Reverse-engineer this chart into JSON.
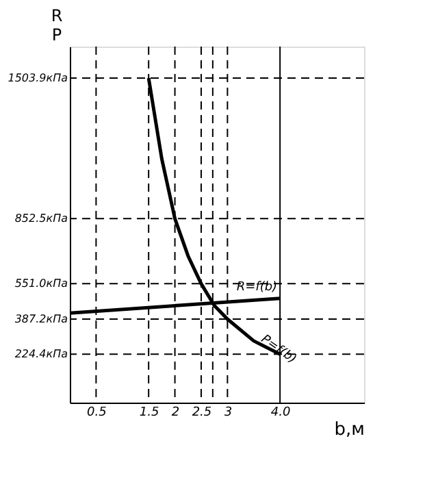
{
  "chart_data": {
    "type": "line",
    "xlabel": "b,м",
    "ylabel": "R\nP",
    "xlim": [
      0,
      5.6
    ],
    "ylim": [
      0,
      1650
    ],
    "xticks": [
      0.5,
      1.5,
      2,
      2.5,
      3,
      {
        "value": 4,
        "label": "4.0"
      }
    ],
    "yticks": [
      {
        "value": 224.4,
        "label": "224.4кПа"
      },
      {
        "value": 387.2,
        "label": "387.2кПа"
      },
      {
        "value": 551.0,
        "label": "551.0кПа"
      },
      {
        "value": 852.5,
        "label": "852.5кПа"
      },
      {
        "value": 1503.9,
        "label": "1503.9кПа"
      }
    ],
    "series": [
      {
        "name": "R=f(b)",
        "color": "#000000",
        "x": [
          0,
          4
        ],
        "values": [
          415,
          483
        ]
      },
      {
        "name": "P=f(b)",
        "color": "#000000",
        "x": [
          1.5,
          1.75,
          2,
          2.25,
          2.5,
          2.75,
          3,
          3.5,
          4
        ],
        "values": [
          1503.9,
          1130,
          852.5,
          680,
          551,
          450,
          387.2,
          286,
          224.4
        ]
      }
    ],
    "ref_lines": [
      {
        "axis": "y",
        "value": 1503.9,
        "color": "#000000",
        "line_style": "dashed"
      },
      {
        "axis": "y",
        "value": 852.5,
        "color": "#000000",
        "line_style": "dashed"
      },
      {
        "axis": "y",
        "value": 551.0,
        "color": "#000000",
        "line_style": "dashed"
      },
      {
        "axis": "y",
        "value": 387.2,
        "color": "#000000",
        "line_style": "dashed"
      },
      {
        "axis": "y",
        "value": 224.4,
        "color": "#000000",
        "line_style": "dashed"
      },
      {
        "axis": "x",
        "value": 0.5,
        "color": "#000000",
        "line_style": "dashed"
      },
      {
        "axis": "x",
        "value": 1.5,
        "color": "#000000",
        "line_style": "dashed"
      },
      {
        "axis": "x",
        "value": 2,
        "color": "#000000",
        "line_style": "dashed"
      },
      {
        "axis": "x",
        "value": 2.5,
        "color": "#000000",
        "line_style": "dashed"
      },
      {
        "axis": "x",
        "value": 2.72,
        "color": "#000000",
        "line_style": "dashed"
      },
      {
        "axis": "x",
        "value": 3,
        "color": "#000000",
        "line_style": "dashed"
      },
      {
        "axis": "x",
        "value": 4,
        "color": "#000000",
        "line_style": "solid"
      }
    ],
    "grid": false,
    "marker": "none",
    "line_style": "solid"
  }
}
